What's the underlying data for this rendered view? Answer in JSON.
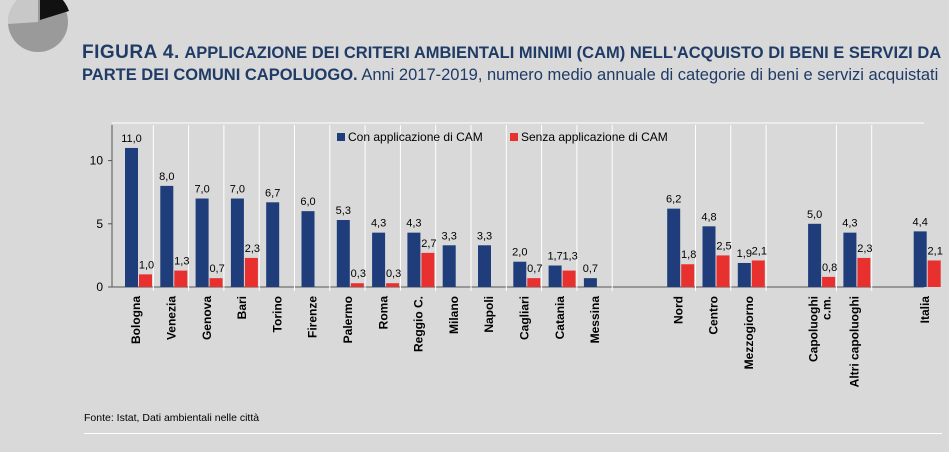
{
  "title": {
    "figure": "FIGURA 4.",
    "main": "APPLICAZIONE DEI CRITERI AMBIENTALI MINIMI (CAM) NELL'ACQUISTO DI BENI E SERVIZI DA PARTE DEI COMUNI CAPOLUOGO.",
    "subtitle": "Anni 2017-2019, numero medio annuale di categorie di beni e servizi acquistati"
  },
  "source": "Fonte: Istat, Dati ambientali nelle città",
  "colors": {
    "series1": "#1f3d7a",
    "series2": "#e8312f",
    "background": "#d9d9d9"
  },
  "chart_data": {
    "type": "bar",
    "title": "",
    "xlabel": "",
    "ylabel": "",
    "ylim": [
      0,
      12
    ],
    "yticks": [
      "0",
      "5",
      "10"
    ],
    "grid": false,
    "legend_position": "top",
    "categories": [
      "Bologna",
      "Venezia",
      "Genova",
      "Bari",
      "Torino",
      "Firenze",
      "Palermo",
      "Roma",
      "Reggio C.",
      "Milano",
      "Napoli",
      "Cagliari",
      "Catania",
      "Messina",
      "Nord",
      "Centro",
      "Mezzogiorno",
      "Capoluoghi c.m.",
      "Altri capoluoghi",
      "Italia"
    ],
    "series": [
      {
        "name": "Con applicazione di CAM",
        "values": [
          11.0,
          8.0,
          7.0,
          7.0,
          6.7,
          6.0,
          5.3,
          4.3,
          4.3,
          3.3,
          3.3,
          2.0,
          1.7,
          0.7,
          6.2,
          4.8,
          1.9,
          5.0,
          4.3,
          4.4
        ],
        "labels": [
          "11,0",
          "8,0",
          "7,0",
          "7,0",
          "6,7",
          "6,0",
          "5,3",
          "4,3",
          "4,3",
          "3,3",
          "3,3",
          "2,0",
          "1,7",
          "0,7",
          "6,2",
          "4,8",
          "1,9",
          "5,0",
          "4,3",
          "4,4"
        ]
      },
      {
        "name": "Senza applicazione di CAM",
        "values": [
          1.0,
          1.3,
          0.7,
          2.3,
          null,
          null,
          0.3,
          0.3,
          2.7,
          null,
          null,
          0.7,
          1.3,
          null,
          1.8,
          2.5,
          2.1,
          0.8,
          2.3,
          2.1
        ],
        "labels": [
          "1,0",
          "1,3",
          "0,7",
          "2,3",
          null,
          null,
          "0,3",
          "0,3",
          "2,7",
          null,
          null,
          "0,7",
          "1,3",
          null,
          "1,8",
          "2,5",
          "2,1",
          "0,8",
          "2,3",
          "2,1"
        ]
      }
    ]
  }
}
